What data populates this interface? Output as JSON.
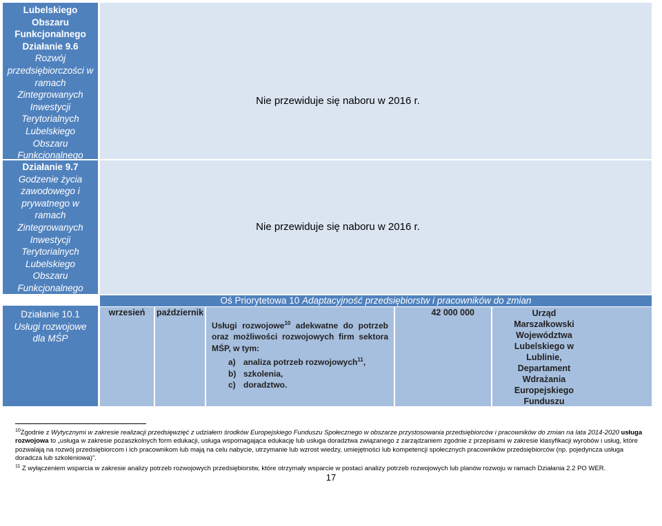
{
  "rows": [
    {
      "label_lines": [
        {
          "text": "Lubelskiego",
          "style": "bold"
        },
        {
          "text": "Obszaru",
          "style": "bold"
        },
        {
          "text": "Funkcjonalnego",
          "style": "bold"
        },
        {
          "text": "Działanie 9.6",
          "style": "bold"
        },
        {
          "text": "Rozwój",
          "style": "italic"
        },
        {
          "text": "przedsiębiorczości w",
          "style": "italic"
        },
        {
          "text": "ramach",
          "style": "italic"
        },
        {
          "text": "Zintegrowanych",
          "style": "italic"
        },
        {
          "text": "Inwestycji",
          "style": "italic"
        },
        {
          "text": "Terytorialnych",
          "style": "italic"
        },
        {
          "text": "Lubelskiego",
          "style": "italic"
        },
        {
          "text": "Obszaru",
          "style": "italic"
        },
        {
          "text": "Funkcjonalnego",
          "style": "italic"
        }
      ],
      "notice": "Nie przewiduje się naboru w 2016 r."
    },
    {
      "label_lines": [
        {
          "text": "Działanie 9.7",
          "style": "bold"
        },
        {
          "text": "Godzenie życia",
          "style": "italic"
        },
        {
          "text": "zawodowego i",
          "style": "italic"
        },
        {
          "text": "prywatnego w",
          "style": "italic"
        },
        {
          "text": "ramach",
          "style": "italic"
        },
        {
          "text": "Zintegrowanych",
          "style": "italic"
        },
        {
          "text": "Inwestycji",
          "style": "italic"
        },
        {
          "text": "Terytorialnych",
          "style": "italic"
        },
        {
          "text": "Lubelskiego",
          "style": "italic"
        },
        {
          "text": "Obszaru",
          "style": "italic"
        },
        {
          "text": "Funkcjonalnego",
          "style": "italic"
        }
      ],
      "notice": "Nie przewiduje się naboru w 2016 r."
    }
  ],
  "axis_header": {
    "prefix": "Oś Priorytetowa 10 ",
    "title": "Adaptacyjność przedsiębiorstw i pracowników do zmian"
  },
  "action_10_1": {
    "label_bold": "Działanie 10.1",
    "label_italic_1": "Usługi rozwojowe",
    "label_italic_2": "dla MŚP",
    "month_start": "wrzesień",
    "month_end": "październik",
    "desc_part1": "Usługi rozwojowe",
    "desc_sup1": "10",
    "desc_part2": " adekwatne do potrzeb oraz możliwości rozwojowych firm sektora MŚP, w tym:",
    "list": [
      {
        "marker": "a)",
        "text": "analiza potrzeb rozwojowych",
        "sup": "11",
        "tail": ","
      },
      {
        "marker": "b)",
        "text": "szkolenia,",
        "sup": "",
        "tail": ""
      },
      {
        "marker": "c)",
        "text": "doradztwo.",
        "sup": "",
        "tail": ""
      }
    ],
    "amount": "42 000 000",
    "institution_lines": [
      "Urząd",
      "Marszałkowski",
      "Województwa",
      "Lubelskiego w",
      "Lublinie,",
      "Departament",
      "Wdrażania",
      "Europejskiego",
      "Funduszu"
    ]
  },
  "footnotes": {
    "fn10_num": "10",
    "fn10_intro": "Zgodnie z ",
    "fn10_italic": "Wytycznymi w zakresie realizacji przedsięwzięć z udziałem środków Europejskiego Funduszu Społecznego w obszarze przystosowania przedsiębiorców i pracowników do zmian na lata 2014-2020",
    "fn10_bold": " usługa rozwojowa",
    "fn10_rest": " to „usługa w zakresie pozaszkolnych form edukacji, usługa wspomagająca edukację lub usługa doradztwa związanego z zarządzaniem zgodnie z przepisami w zakresie klasyfikacji wyrobów i usług, które pozwalają na rozwój przedsiębiorcom i ich pracownikom lub mają na celu nabycie, utrzymanie lub wzrost wiedzy, umiejętności lub kompetencji społecznych pracowników przedsiębiorców (np. pojedyncza usługa doradcza lub szkoleniowa)”.",
    "fn11_num": "11",
    "fn11_text": " Z wyłączeniem wsparcia w zakresie analizy potrzeb rozwojowych przedsiębiorstw, które otrzymały wsparcie w postaci analizy potrzeb rozwojowych lub planów rozwoju w ramach Działania 2.2 PO WER."
  },
  "page_number": "17",
  "colors": {
    "dark_blue": "#4f81bd",
    "light_blue": "#dbe5f1",
    "mid_blue": "#a7bfde",
    "axis_text": "#ffffff"
  }
}
